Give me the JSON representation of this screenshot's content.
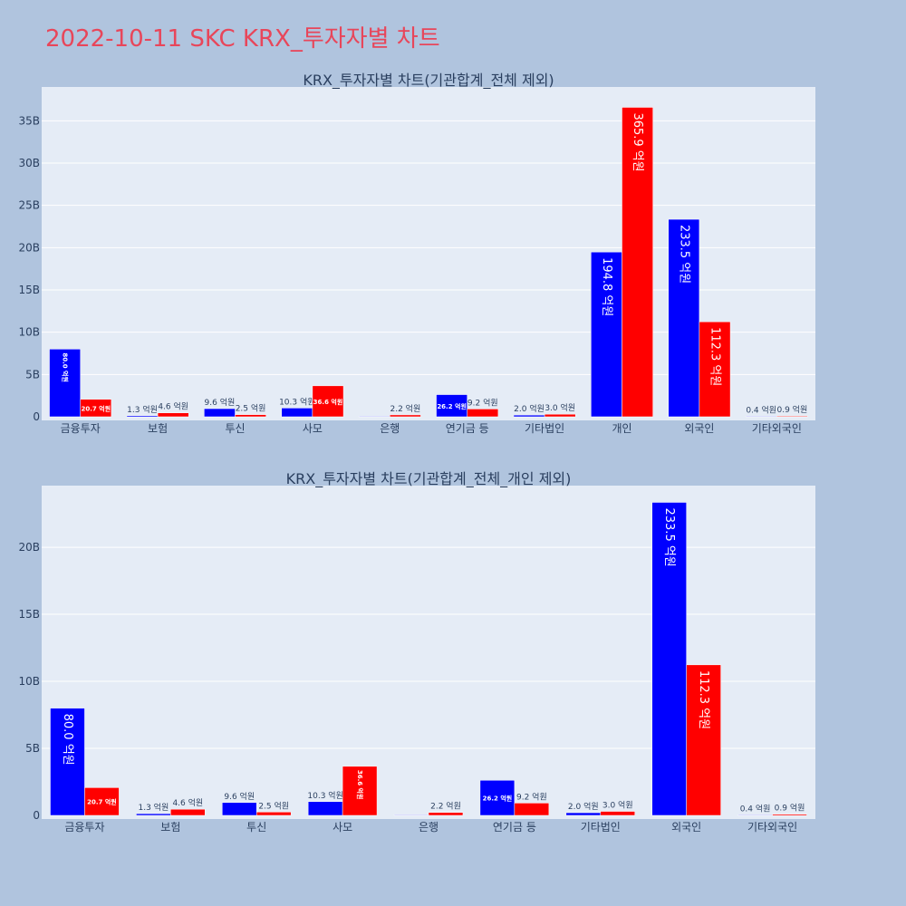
{
  "page_title": "2022-10-11 SKC KRX_투자자별 차트",
  "colors": {
    "buy": "#0000ff",
    "sell": "#ff0000",
    "plot_bg": "#e5ecf6",
    "page_bg": "#b0c4de",
    "title": "#e8465a"
  },
  "chart_data": [
    {
      "type": "bar",
      "title": "KRX_투자자별 차트(기관합계_전체 제외)",
      "categories": [
        "금융투자",
        "보험",
        "투신",
        "사모",
        "은행",
        "연기금 등",
        "기타법인",
        "개인",
        "외국인",
        "기타외국인"
      ],
      "y_ticks": [
        "0",
        "5B",
        "10B",
        "15B",
        "20B",
        "25B",
        "30B",
        "35B"
      ],
      "ylim": [
        0,
        39
      ],
      "grid": true,
      "series": [
        {
          "values": [
            8.0,
            0.13,
            0.96,
            1.03,
            0,
            2.62,
            0.2,
            19.48,
            23.35,
            0.04
          ],
          "labels": [
            "80.0 억원",
            "1.3 억원",
            "9.6 억원",
            "10.3 억원",
            "",
            "26.2 억원",
            "2.0 억원",
            "194.8 억원",
            "233.5 억원",
            "0.4 억원"
          ]
        },
        {
          "values": [
            2.07,
            0.46,
            0.25,
            3.66,
            0.22,
            0.92,
            0.3,
            36.59,
            11.23,
            0.09
          ],
          "labels": [
            "20.7 억원",
            "4.6 억원",
            "2.5 억원",
            "36.6 억원",
            "2.2 억원",
            "9.2 억원",
            "3.0 억원",
            "365.9 억원",
            "112.3 억원",
            "0.9 억원"
          ]
        }
      ]
    },
    {
      "type": "bar",
      "title": "KRX_투자자별 차트(기관합계_전체_개인 제외)",
      "categories": [
        "금융투자",
        "보험",
        "투신",
        "사모",
        "은행",
        "연기금 등",
        "기타법인",
        "외국인",
        "기타외국인"
      ],
      "y_ticks": [
        "0",
        "5B",
        "10B",
        "15B",
        "20B"
      ],
      "ylim": [
        0,
        24.6
      ],
      "grid": true,
      "series": [
        {
          "values": [
            8.0,
            0.13,
            0.96,
            1.03,
            0,
            2.62,
            0.2,
            23.35,
            0.04
          ],
          "labels": [
            "80.0 억원",
            "1.3 억원",
            "9.6 억원",
            "10.3 억원",
            "",
            "26.2 억원",
            "2.0 억원",
            "233.5 억원",
            "0.4 억원"
          ]
        },
        {
          "values": [
            2.07,
            0.46,
            0.25,
            3.66,
            0.22,
            0.92,
            0.3,
            11.23,
            0.09
          ],
          "labels": [
            "20.7 억원",
            "4.6 억원",
            "2.5 억원",
            "36.6 억원",
            "2.2 억원",
            "9.2 억원",
            "3.0 억원",
            "112.3 억원",
            "0.9 억원"
          ]
        }
      ]
    }
  ]
}
